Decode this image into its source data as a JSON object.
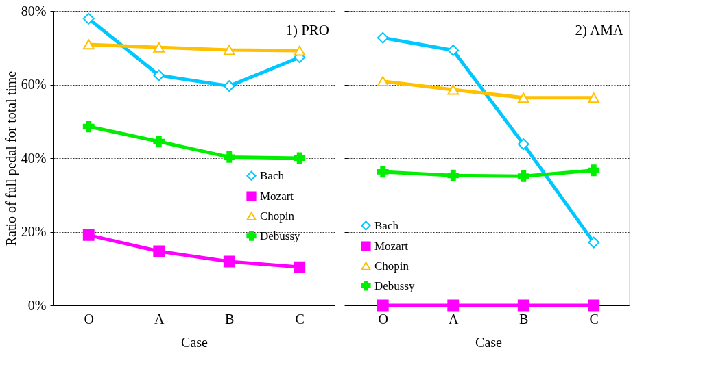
{
  "chart_data": [
    {
      "type": "line",
      "categories": [
        "O",
        "A",
        "B",
        "C"
      ],
      "xlabel": "Case",
      "ylabel": "Ratio of full pedal for total time",
      "annotations": [
        "1) PRO"
      ],
      "ylim": [
        0,
        80
      ],
      "yticks": [
        {
          "value": 0,
          "label": "0%"
        },
        {
          "value": 20,
          "label": "20%"
        },
        {
          "value": 40,
          "label": "40%"
        },
        {
          "value": 60,
          "label": "60%"
        },
        {
          "value": 80,
          "label": "80%"
        }
      ],
      "grid": "y",
      "legend": "right",
      "series": [
        {
          "name": "Bach",
          "color": "#00c8ff",
          "marker": "diamond",
          "values": [
            77.9,
            62.5,
            59.6,
            67.4
          ]
        },
        {
          "name": "Mozart",
          "color": "#ff00ff",
          "marker": "square",
          "values": [
            19.1,
            14.7,
            11.9,
            10.4
          ]
        },
        {
          "name": "Chopin",
          "color": "#ffc000",
          "marker": "triangle",
          "values": [
            70.9,
            70.1,
            69.4,
            69.2
          ]
        },
        {
          "name": "Debussy",
          "color": "#00ee00",
          "marker": "cross",
          "values": [
            48.6,
            44.5,
            40.3,
            40.0
          ]
        }
      ]
    },
    {
      "type": "line",
      "categories": [
        "O",
        "A",
        "B",
        "C"
      ],
      "xlabel": "Case",
      "annotations": [
        "2) AMA"
      ],
      "ylim": [
        0,
        80
      ],
      "yticks": [
        {
          "value": 0,
          "label": null
        },
        {
          "value": 20,
          "label": null
        },
        {
          "value": 40,
          "label": null
        },
        {
          "value": 60,
          "label": null
        },
        {
          "value": 80,
          "label": null
        }
      ],
      "grid": "y",
      "legend": "bottom left",
      "tick_labels": "x",
      "series": [
        {
          "name": "Bach",
          "color": "#00c8ff",
          "marker": "diamond",
          "values": [
            72.7,
            69.3,
            43.8,
            17.1
          ]
        },
        {
          "name": "Mozart",
          "color": "#ff00ff",
          "marker": "square",
          "values": [
            0,
            0,
            0,
            0
          ]
        },
        {
          "name": "Chopin",
          "color": "#ffc000",
          "marker": "triangle",
          "values": [
            60.9,
            58.6,
            56.4,
            56.4
          ]
        },
        {
          "name": "Debussy",
          "color": "#00ee00",
          "marker": "cross",
          "values": [
            36.3,
            35.3,
            35.1,
            36.7
          ]
        }
      ]
    }
  ]
}
